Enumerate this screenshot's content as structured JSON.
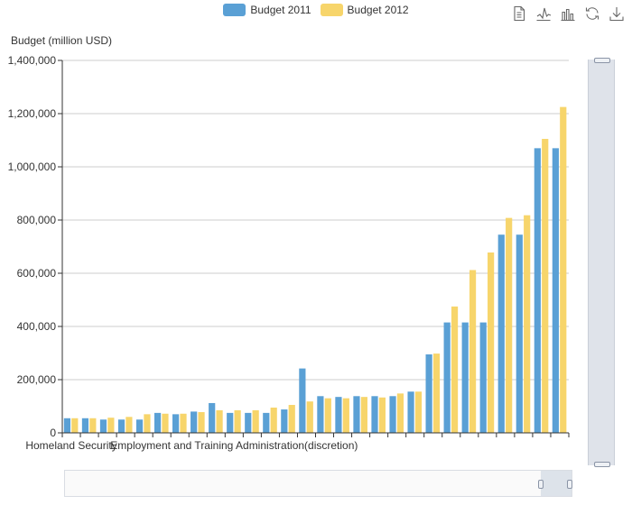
{
  "colors": {
    "series_2011": "#5aa0d5",
    "series_2012": "#f7d56b",
    "axis": "#333333",
    "grid": "#cccccc"
  },
  "toolbox": {
    "icons": [
      "data-view-icon",
      "line-chart-icon",
      "bar-chart-icon",
      "restore-icon",
      "download-icon"
    ]
  },
  "chart_data": {
    "type": "bar",
    "title": "",
    "ylabel": "Budget (million USD)",
    "xlabel": "",
    "ylim": [
      0,
      1400000
    ],
    "yticks": [
      0,
      200000,
      400000,
      600000,
      800000,
      1000000,
      1200000,
      1400000
    ],
    "ytick_labels": [
      "0",
      "200,000",
      "400,000",
      "600,000",
      "800,000",
      "1,000,000",
      "1,200,000",
      "1,400,000"
    ],
    "visible_category_labels": [
      {
        "index": 0,
        "text": "Homeland Security"
      },
      {
        "index": 9,
        "text": "Employment and Training Administration(discretion)"
      }
    ],
    "legend": "top-center",
    "grid": true,
    "series": [
      {
        "name": "Budget 2011",
        "values": [
          55000,
          55000,
          50000,
          50000,
          50000,
          75000,
          70000,
          80000,
          112000,
          75000,
          75000,
          75000,
          88000,
          242000,
          138000,
          135000,
          138000,
          138000,
          138000,
          155000,
          295000,
          415000,
          415000,
          415000,
          745000,
          745000,
          1070000,
          1070000
        ]
      },
      {
        "name": "Budget 2012",
        "values": [
          55000,
          55000,
          57000,
          60000,
          70000,
          72000,
          72000,
          78000,
          85000,
          85000,
          85000,
          95000,
          105000,
          118000,
          130000,
          130000,
          135000,
          133000,
          148000,
          155000,
          298000,
          475000,
          612000,
          678000,
          808000,
          818000,
          1105000,
          1225000
        ]
      }
    ]
  }
}
